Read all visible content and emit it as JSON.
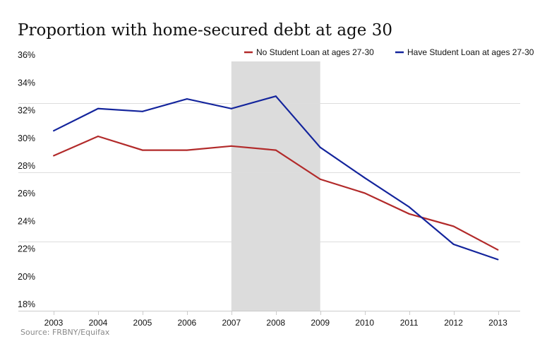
{
  "chart_data": {
    "type": "line",
    "title": "Proportion with home-secured debt at age 30",
    "xlabel": "",
    "ylabel": "",
    "x": [
      "2003",
      "2004",
      "2005",
      "2006",
      "2007",
      "2008",
      "2009",
      "2010",
      "2011",
      "2012",
      "2013"
    ],
    "ylim": [
      18,
      36
    ],
    "ytick_labels": [
      "36%",
      "34%",
      "32%",
      "30%",
      "28%",
      "26%",
      "24%",
      "22%",
      "20%",
      "18%"
    ],
    "ytick_values": [
      36,
      34,
      32,
      30,
      28,
      26,
      24,
      22,
      20,
      18
    ],
    "gridlines": [
      23,
      28,
      33
    ],
    "shaded_region": {
      "from": "2007",
      "to": "2009",
      "color": "#dcdcdc"
    },
    "series": [
      {
        "name": "No Student Loan at ages 27-30",
        "color": "#b22a2a",
        "values": [
          29.2,
          30.6,
          29.6,
          29.6,
          29.9,
          29.6,
          27.5,
          26.5,
          25.0,
          24.1,
          22.4
        ]
      },
      {
        "name": "Have Student Loan at ages 27-30",
        "color": "#13249c",
        "values": [
          31.0,
          32.6,
          32.4,
          33.3,
          32.6,
          33.5,
          29.8,
          27.6,
          25.5,
          22.8,
          21.7
        ]
      }
    ],
    "legend": "top-right",
    "source": "Source: FRBNY/Equifax"
  },
  "colors": {
    "grid": "#dddddd",
    "axis": "#cccccc"
  }
}
